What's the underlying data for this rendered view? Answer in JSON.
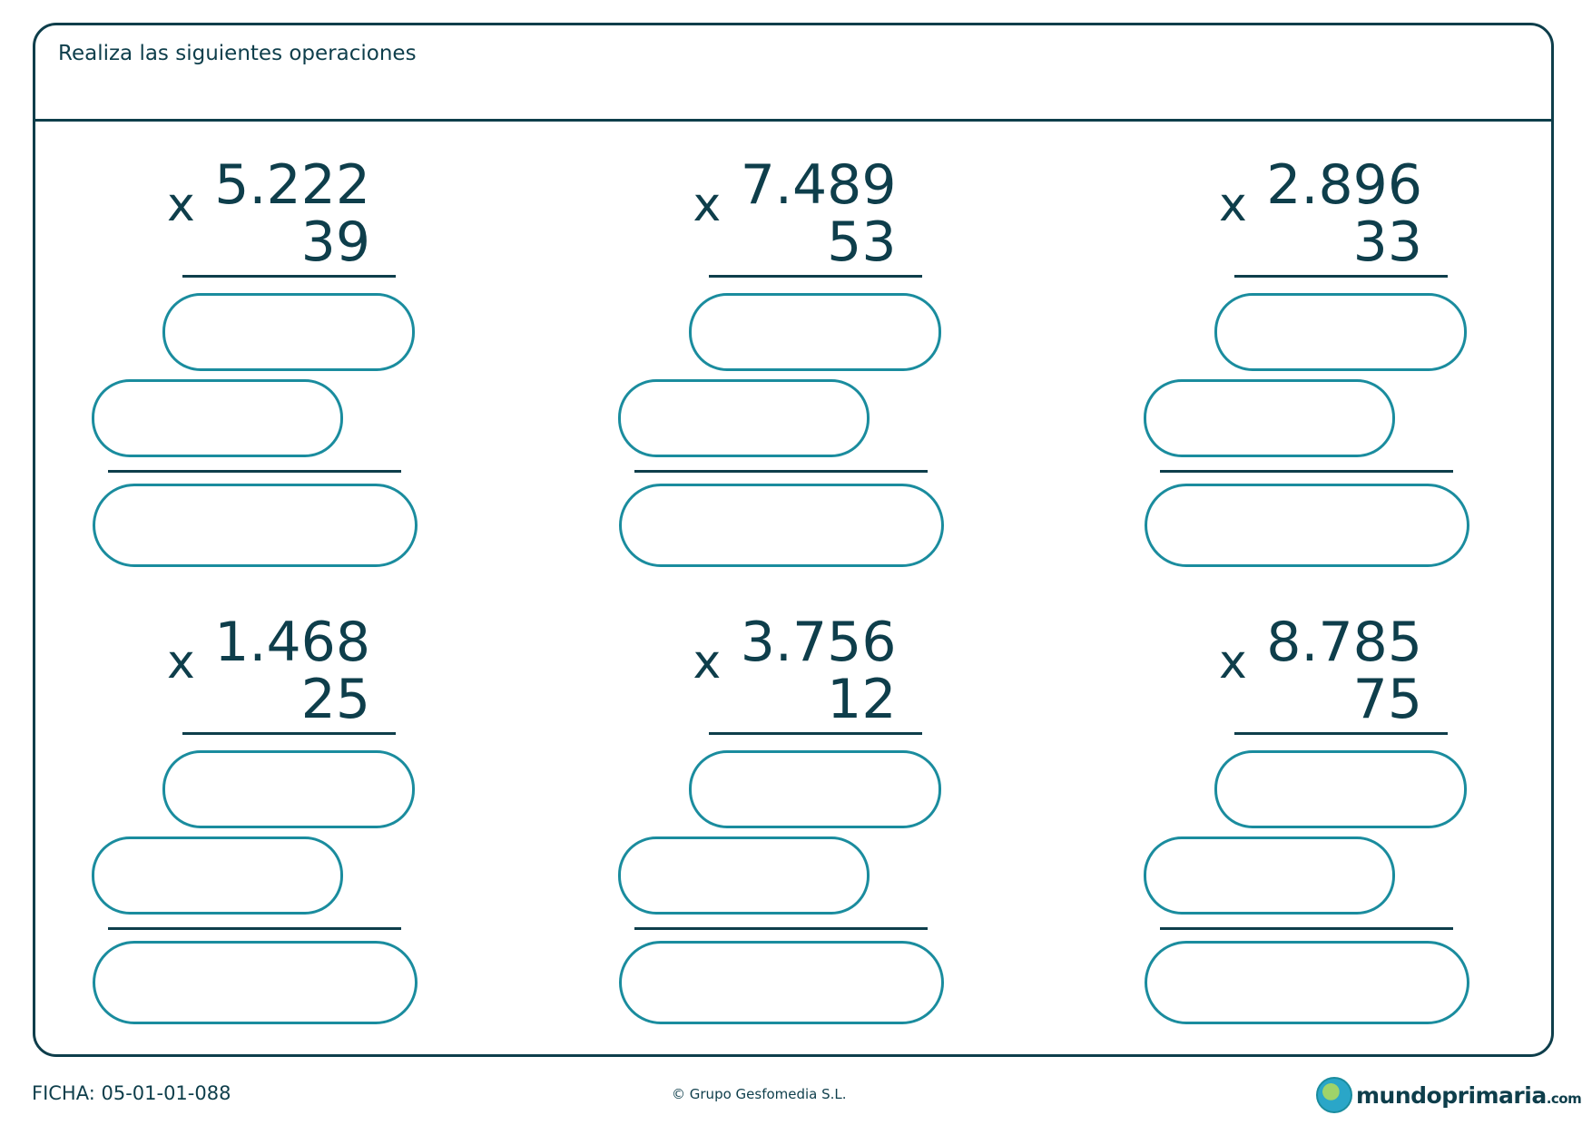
{
  "header": {
    "title": "Realiza las siguientes operaciones"
  },
  "problems": [
    {
      "operator": "x",
      "multiplicand": "5.222",
      "multiplier": "39"
    },
    {
      "operator": "x",
      "multiplicand": "7.489",
      "multiplier": "53"
    },
    {
      "operator": "x",
      "multiplicand": "2.896",
      "multiplier": "33"
    },
    {
      "operator": "x",
      "multiplicand": "1.468",
      "multiplier": "25"
    },
    {
      "operator": "x",
      "multiplicand": "3.756",
      "multiplier": "12"
    },
    {
      "operator": "x",
      "multiplicand": "8.785",
      "multiplier": "75"
    }
  ],
  "footer": {
    "ficha": "FICHA: 05-01-01-088",
    "copyright": "© Grupo Gesfomedia S.L.",
    "logo": "mundoprimaria.com"
  },
  "colors": {
    "ink": "#0e3e4b",
    "box_border": "#1a8c9e"
  }
}
